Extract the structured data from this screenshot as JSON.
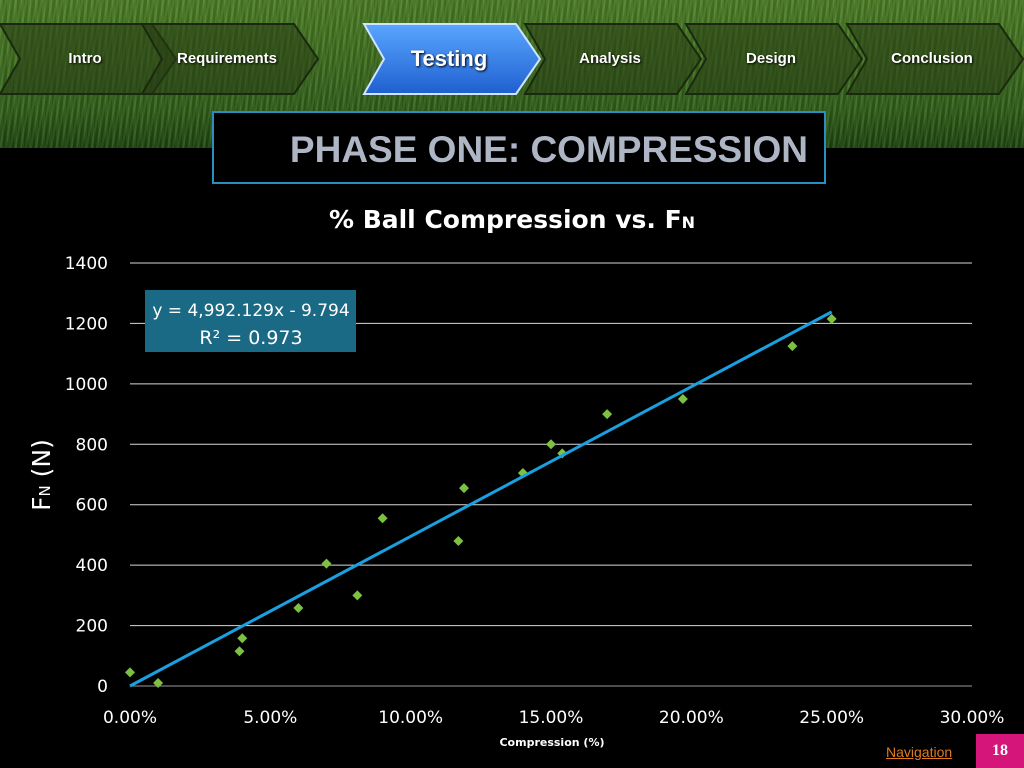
{
  "nav": {
    "tabs": [
      {
        "label": "Intro",
        "active": false
      },
      {
        "label": "Requirements",
        "active": false
      },
      {
        "label": "Testing",
        "active": true
      },
      {
        "label": "Analysis",
        "active": false
      },
      {
        "label": "Design",
        "active": false
      },
      {
        "label": "Conclusion",
        "active": false
      }
    ]
  },
  "slide": {
    "title": "PHASE ONE: COMPRESSION",
    "navigation_label": "Navigation",
    "page_number": "18"
  },
  "colors": {
    "point": "#7dc142",
    "trendline": "#1aa0e0",
    "equation_box": "#1b6a85",
    "active_tab": "#2f7fe8",
    "page_badge": "#d6157a"
  },
  "chart_data": {
    "type": "scatter",
    "title": "% Ball Compression vs. F",
    "title_subscript": "N",
    "ylabel": "F",
    "ylabel_subscript": "N",
    "ylabel_suffix": " (N)",
    "xlabel": "Compression (%)",
    "xlim": [
      0,
      30
    ],
    "ylim": [
      0,
      1400
    ],
    "x_ticks": [
      "0.00%",
      "5.00%",
      "10.00%",
      "15.00%",
      "20.00%",
      "25.00%",
      "30.00%"
    ],
    "y_ticks": [
      "0",
      "200",
      "400",
      "600",
      "800",
      "1000",
      "1200",
      "1400"
    ],
    "grid": true,
    "points": [
      {
        "x": 0.0,
        "y": 45
      },
      {
        "x": 1.0,
        "y": 10
      },
      {
        "x": 3.9,
        "y": 115
      },
      {
        "x": 4.0,
        "y": 158
      },
      {
        "x": 6.0,
        "y": 258
      },
      {
        "x": 7.0,
        "y": 405
      },
      {
        "x": 8.1,
        "y": 300
      },
      {
        "x": 9.0,
        "y": 555
      },
      {
        "x": 11.7,
        "y": 480
      },
      {
        "x": 11.9,
        "y": 655
      },
      {
        "x": 14.0,
        "y": 705
      },
      {
        "x": 15.0,
        "y": 800
      },
      {
        "x": 15.4,
        "y": 770
      },
      {
        "x": 17.0,
        "y": 900
      },
      {
        "x": 19.7,
        "y": 950
      },
      {
        "x": 23.6,
        "y": 1125
      },
      {
        "x": 25.0,
        "y": 1215
      }
    ],
    "trendline": {
      "slope": 4992.129,
      "intercept": -9.794,
      "x_range": [
        0,
        25
      ]
    },
    "equation_line1": "y = 4,992.129x - 9.794",
    "equation_line2": "R² = 0.973"
  }
}
